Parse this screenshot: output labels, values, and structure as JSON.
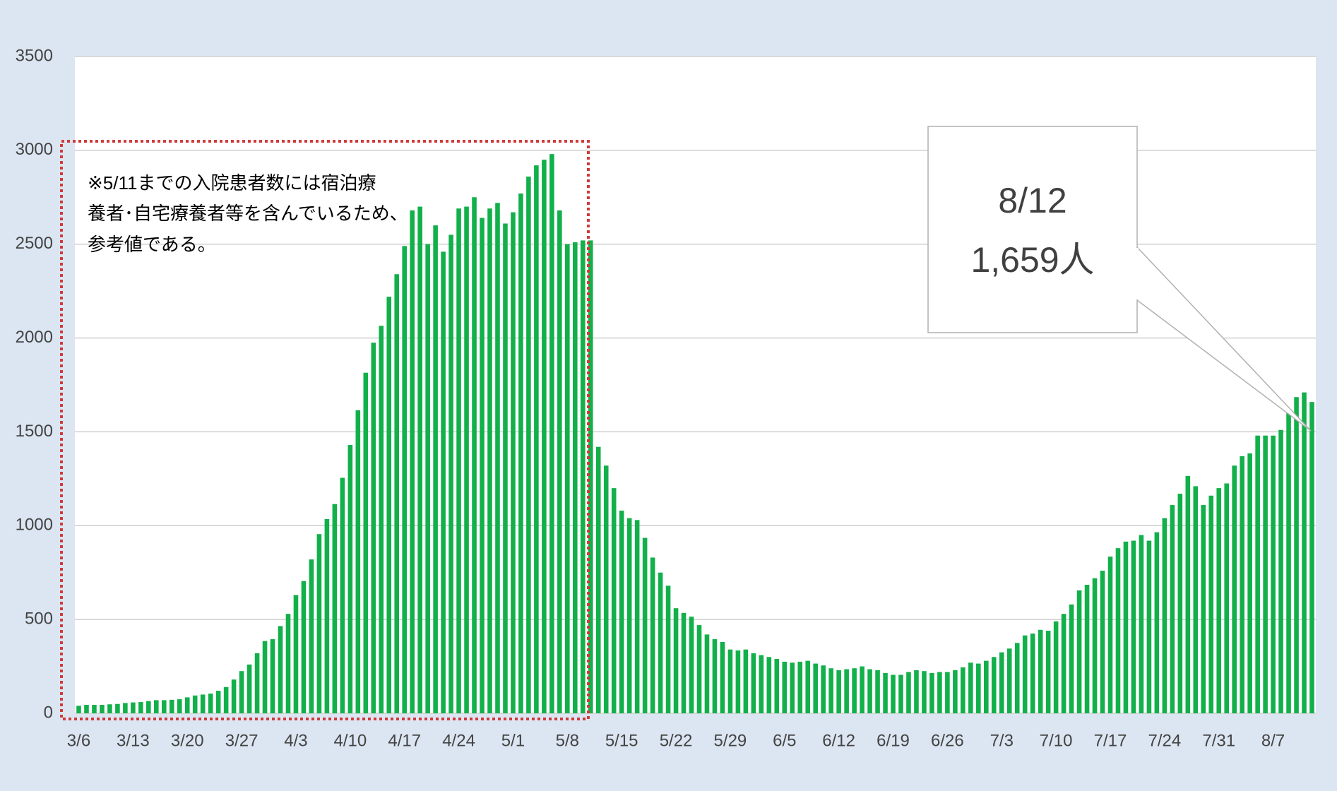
{
  "chart_data": {
    "type": "bar",
    "categories": [
      "3/6",
      null,
      null,
      null,
      null,
      null,
      null,
      "3/13",
      null,
      null,
      null,
      null,
      null,
      null,
      "3/20",
      null,
      null,
      null,
      null,
      null,
      null,
      "3/27",
      null,
      null,
      null,
      null,
      null,
      null,
      "4/3",
      null,
      null,
      null,
      null,
      null,
      null,
      "4/10",
      null,
      null,
      null,
      null,
      null,
      null,
      "4/17",
      null,
      null,
      null,
      null,
      null,
      null,
      "4/24",
      null,
      null,
      null,
      null,
      null,
      null,
      "5/1",
      null,
      null,
      null,
      null,
      null,
      null,
      "5/8",
      null,
      null,
      null,
      null,
      null,
      null,
      "5/15",
      null,
      null,
      null,
      null,
      null,
      null,
      "5/22",
      null,
      null,
      null,
      null,
      null,
      null,
      "5/29",
      null,
      null,
      null,
      null,
      null,
      null,
      "6/5",
      null,
      null,
      null,
      null,
      null,
      null,
      "6/12",
      null,
      null,
      null,
      null,
      null,
      null,
      "6/19",
      null,
      null,
      null,
      null,
      null,
      null,
      "6/26",
      null,
      null,
      null,
      null,
      null,
      null,
      "7/3",
      null,
      null,
      null,
      null,
      null,
      null,
      "7/10",
      null,
      null,
      null,
      null,
      null,
      null,
      "7/17",
      null,
      null,
      null,
      null,
      null,
      null,
      "7/24",
      null,
      null,
      null,
      null,
      null,
      null,
      "7/31",
      null,
      null,
      null,
      null,
      null,
      null,
      "8/7",
      null,
      null,
      null,
      null,
      null
    ],
    "values": [
      40,
      45,
      45,
      45,
      48,
      50,
      55,
      58,
      60,
      65,
      70,
      70,
      72,
      75,
      85,
      95,
      100,
      105,
      120,
      140,
      180,
      225,
      260,
      320,
      385,
      395,
      465,
      530,
      630,
      705,
      820,
      955,
      1035,
      1115,
      1255,
      1430,
      1615,
      1815,
      1975,
      2065,
      2220,
      2340,
      2490,
      2680,
      2700,
      2500,
      2600,
      2460,
      2550,
      2690,
      2700,
      2750,
      2640,
      2690,
      2720,
      2610,
      2670,
      2770,
      2860,
      2920,
      2950,
      2980,
      2680,
      2500,
      2510,
      2520,
      2520,
      1420,
      1320,
      1200,
      1080,
      1040,
      1030,
      935,
      830,
      750,
      680,
      560,
      535,
      515,
      470,
      420,
      395,
      380,
      340,
      335,
      340,
      320,
      310,
      300,
      290,
      275,
      270,
      275,
      280,
      265,
      255,
      240,
      230,
      235,
      240,
      250,
      235,
      230,
      215,
      205,
      205,
      220,
      230,
      225,
      215,
      220,
      220,
      230,
      245,
      270,
      265,
      280,
      300,
      325,
      345,
      375,
      415,
      425,
      445,
      440,
      490,
      530,
      580,
      655,
      685,
      720,
      760,
      835,
      880,
      915,
      920,
      950,
      920,
      965,
      1040,
      1110,
      1170,
      1265,
      1210,
      1110,
      1160,
      1200,
      1225,
      1320,
      1370,
      1385,
      1480,
      1480,
      1480,
      1510,
      1600,
      1685,
      1710,
      1659
    ],
    "color": "#12b04a",
    "ylim": [
      0,
      3500
    ],
    "yticks": [
      0,
      500,
      1000,
      1500,
      2000,
      2500,
      3000,
      3500
    ],
    "grid": true,
    "annotations": {
      "note": [
        "※5/11までの入院患者数には宿泊療",
        "養者･自宅療養者等を含んでいるため、",
        "参考値である。"
      ],
      "callout": [
        "8/12",
        "1,659人"
      ]
    }
  }
}
